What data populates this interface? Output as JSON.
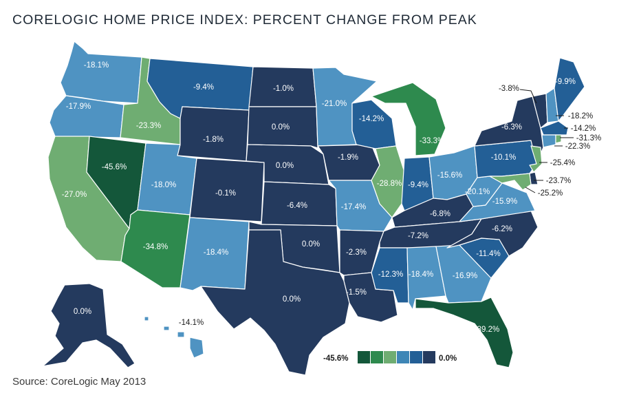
{
  "title": "CORELOGIC HOME PRICE INDEX: PERCENT CHANGE FROM PEAK",
  "source": "Source: CoreLogic May 2013",
  "legend": {
    "min_label": "-45.6%",
    "max_label": "0.0%",
    "colors": [
      "#14573a",
      "#2e8a4e",
      "#6fad72",
      "#3e86b6",
      "#235f96",
      "#243a5e"
    ]
  },
  "colors": {
    "c0": "#14573a",
    "c1": "#2e8a4e",
    "c2": "#6fad72",
    "c3": "#4f93c2",
    "c4": "#235f96",
    "c5": "#243a5e"
  },
  "states": {
    "WA": "-18.1%",
    "OR": "-17.9%",
    "CA": "-27.0%",
    "NV": "-45.6%",
    "ID": "-23.3%",
    "MT": "-9.4%",
    "WY": "-1.8%",
    "UT": "-18.0%",
    "AZ": "-34.8%",
    "CO": "-0.1%",
    "NM": "-18.4%",
    "ND": "-1.0%",
    "SD": "0.0%",
    "NE": "0.0%",
    "KS": "-6.4%",
    "OK": "0.0%",
    "TX": "0.0%",
    "MN": "-21.0%",
    "IA": "-1.9%",
    "MO": "-17.4%",
    "AR": "-2.3%",
    "LA": "-1.5%",
    "WI": "-14.2%",
    "IL": "-28.8%",
    "MI": "-33.3%",
    "IN": "-9.4%",
    "OH": "-15.6%",
    "KY": "-6.8%",
    "TN": "-7.2%",
    "MS": "-12.3%",
    "AL": "-18.4%",
    "GA": "-16.9%",
    "FL": "-39.2%",
    "SC": "-11.4%",
    "NC": "-6.2%",
    "VA": "-15.9%",
    "WV": "-20.1%",
    "PA": "-10.1%",
    "NY": "-6.3%",
    "VT": "-3.8%",
    "NH": "-18.2%",
    "ME": "-9.9%",
    "MA": "-14.2%",
    "RI": "-31.3%",
    "CT": "-22.3%",
    "NJ": "-25.4%",
    "DE": "-23.7%",
    "MD": "-25.2%",
    "AK": "0.0%",
    "HI": "-14.1%"
  }
}
